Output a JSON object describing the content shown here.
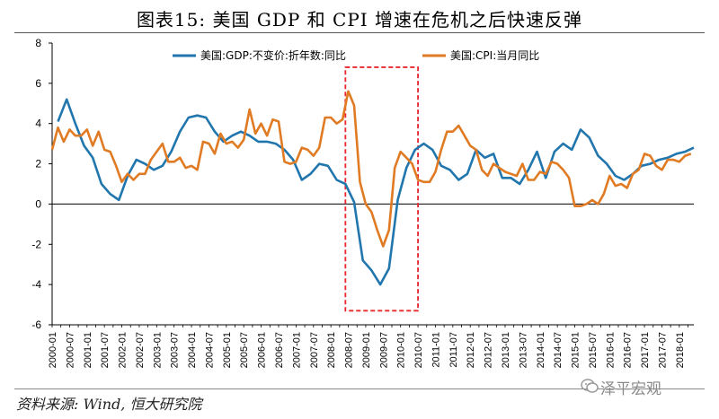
{
  "title": "图表15:    美国 GDP 和 CPI 增速在危机之后快速反弹",
  "source": "资料来源: Wind, 恒大研究院",
  "watermark": "泽平宏观",
  "chart_data": {
    "type": "line",
    "ylim": [
      -6,
      8
    ],
    "yticks": [
      -6,
      -4,
      -2,
      0,
      2,
      4,
      6,
      8
    ],
    "x_start": "2000-01",
    "x_end": "2018-06",
    "x_tick_labels": [
      "2000-01",
      "2000-07",
      "2001-01",
      "2001-07",
      "2002-01",
      "2002-07",
      "2003-01",
      "2003-07",
      "2004-01",
      "2004-07",
      "2005-01",
      "2005-07",
      "2006-01",
      "2006-07",
      "2007-01",
      "2007-07",
      "2008-01",
      "2008-07",
      "2009-01",
      "2009-07",
      "2010-01",
      "2010-07",
      "2011-01",
      "2011-07",
      "2012-01",
      "2012-07",
      "2013-01",
      "2013-07",
      "2014-01",
      "2014-07",
      "2015-01",
      "2015-07",
      "2016-01",
      "2016-07",
      "2017-01",
      "2017-07",
      "2018-01"
    ],
    "legend_position": "top",
    "highlight_box": {
      "x_from": "2008-06",
      "x_to": "2010-07",
      "y_from": -5.3,
      "y_to": 6.8,
      "color": "#e8262b"
    },
    "series": [
      {
        "name": "美国:GDP:不变价:折年数:同比",
        "color": "#2176ae",
        "points": [
          [
            "2000-03",
            4.1
          ],
          [
            "2000-06",
            5.2
          ],
          [
            "2000-09",
            4.0
          ],
          [
            "2000-12",
            2.9
          ],
          [
            "2001-03",
            2.3
          ],
          [
            "2001-06",
            1.0
          ],
          [
            "2001-09",
            0.5
          ],
          [
            "2001-12",
            0.2
          ],
          [
            "2002-03",
            1.4
          ],
          [
            "2002-06",
            2.2
          ],
          [
            "2002-09",
            2.0
          ],
          [
            "2002-12",
            1.7
          ],
          [
            "2003-03",
            1.9
          ],
          [
            "2003-06",
            2.6
          ],
          [
            "2003-09",
            3.6
          ],
          [
            "2003-12",
            4.3
          ],
          [
            "2004-03",
            4.4
          ],
          [
            "2004-06",
            4.3
          ],
          [
            "2004-09",
            3.6
          ],
          [
            "2004-12",
            3.1
          ],
          [
            "2005-03",
            3.4
          ],
          [
            "2005-06",
            3.6
          ],
          [
            "2005-09",
            3.4
          ],
          [
            "2005-12",
            3.1
          ],
          [
            "2006-03",
            3.1
          ],
          [
            "2006-06",
            3.0
          ],
          [
            "2006-09",
            2.7
          ],
          [
            "2006-12",
            2.2
          ],
          [
            "2007-03",
            1.2
          ],
          [
            "2007-06",
            1.5
          ],
          [
            "2007-09",
            2.0
          ],
          [
            "2007-12",
            1.9
          ],
          [
            "2008-03",
            1.2
          ],
          [
            "2008-06",
            1.0
          ],
          [
            "2008-09",
            0.1
          ],
          [
            "2008-12",
            -2.8
          ],
          [
            "2009-03",
            -3.3
          ],
          [
            "2009-06",
            -4.0
          ],
          [
            "2009-09",
            -3.2
          ],
          [
            "2009-12",
            0.2
          ],
          [
            "2010-03",
            1.8
          ],
          [
            "2010-06",
            2.7
          ],
          [
            "2010-09",
            3.0
          ],
          [
            "2010-12",
            2.7
          ],
          [
            "2011-03",
            1.9
          ],
          [
            "2011-06",
            1.7
          ],
          [
            "2011-09",
            1.2
          ],
          [
            "2011-12",
            1.5
          ],
          [
            "2012-03",
            2.7
          ],
          [
            "2012-06",
            2.3
          ],
          [
            "2012-09",
            2.5
          ],
          [
            "2012-12",
            1.3
          ],
          [
            "2013-03",
            1.3
          ],
          [
            "2013-06",
            1.0
          ],
          [
            "2013-09",
            1.7
          ],
          [
            "2013-12",
            2.6
          ],
          [
            "2014-03",
            1.3
          ],
          [
            "2014-06",
            2.6
          ],
          [
            "2014-09",
            3.0
          ],
          [
            "2014-12",
            2.7
          ],
          [
            "2015-03",
            3.7
          ],
          [
            "2015-06",
            3.3
          ],
          [
            "2015-09",
            2.4
          ],
          [
            "2015-12",
            2.0
          ],
          [
            "2016-03",
            1.4
          ],
          [
            "2016-06",
            1.2
          ],
          [
            "2016-09",
            1.5
          ],
          [
            "2016-12",
            1.9
          ],
          [
            "2017-03",
            2.0
          ],
          [
            "2017-06",
            2.2
          ],
          [
            "2017-09",
            2.3
          ],
          [
            "2017-12",
            2.5
          ],
          [
            "2018-03",
            2.6
          ],
          [
            "2018-06",
            2.8
          ]
        ]
      },
      {
        "name": "美国:CPI:当月同比",
        "color": "#e07b24",
        "points": [
          [
            "2000-01",
            2.7
          ],
          [
            "2000-03",
            3.8
          ],
          [
            "2000-05",
            3.1
          ],
          [
            "2000-07",
            3.7
          ],
          [
            "2000-09",
            3.4
          ],
          [
            "2000-11",
            3.4
          ],
          [
            "2001-01",
            3.7
          ],
          [
            "2001-03",
            2.9
          ],
          [
            "2001-05",
            3.6
          ],
          [
            "2001-07",
            2.7
          ],
          [
            "2001-09",
            2.6
          ],
          [
            "2001-11",
            1.9
          ],
          [
            "2002-01",
            1.1
          ],
          [
            "2002-03",
            1.5
          ],
          [
            "2002-05",
            1.2
          ],
          [
            "2002-07",
            1.5
          ],
          [
            "2002-09",
            1.5
          ],
          [
            "2002-11",
            2.2
          ],
          [
            "2003-01",
            2.6
          ],
          [
            "2003-03",
            3.0
          ],
          [
            "2003-05",
            2.1
          ],
          [
            "2003-07",
            2.1
          ],
          [
            "2003-09",
            2.3
          ],
          [
            "2003-11",
            1.8
          ],
          [
            "2004-01",
            1.9
          ],
          [
            "2004-03",
            1.7
          ],
          [
            "2004-05",
            3.1
          ],
          [
            "2004-07",
            3.0
          ],
          [
            "2004-09",
            2.5
          ],
          [
            "2004-11",
            3.5
          ],
          [
            "2005-01",
            3.0
          ],
          [
            "2005-03",
            3.1
          ],
          [
            "2005-05",
            2.8
          ],
          [
            "2005-07",
            3.2
          ],
          [
            "2005-09",
            4.7
          ],
          [
            "2005-11",
            3.5
          ],
          [
            "2006-01",
            4.0
          ],
          [
            "2006-03",
            3.4
          ],
          [
            "2006-05",
            4.2
          ],
          [
            "2006-07",
            4.1
          ],
          [
            "2006-09",
            2.1
          ],
          [
            "2006-11",
            2.0
          ],
          [
            "2007-01",
            2.1
          ],
          [
            "2007-03",
            2.8
          ],
          [
            "2007-05",
            2.7
          ],
          [
            "2007-07",
            2.4
          ],
          [
            "2007-09",
            2.8
          ],
          [
            "2007-11",
            4.3
          ],
          [
            "2008-01",
            4.3
          ],
          [
            "2008-03",
            4.0
          ],
          [
            "2008-05",
            4.2
          ],
          [
            "2008-07",
            5.6
          ],
          [
            "2008-09",
            4.9
          ],
          [
            "2008-11",
            1.1
          ],
          [
            "2009-01",
            0.0
          ],
          [
            "2009-03",
            -0.4
          ],
          [
            "2009-05",
            -1.3
          ],
          [
            "2009-07",
            -2.1
          ],
          [
            "2009-09",
            -1.3
          ],
          [
            "2009-11",
            1.8
          ],
          [
            "2010-01",
            2.6
          ],
          [
            "2010-03",
            2.3
          ],
          [
            "2010-05",
            2.0
          ],
          [
            "2010-07",
            1.2
          ],
          [
            "2010-09",
            1.1
          ],
          [
            "2010-11",
            1.1
          ],
          [
            "2011-01",
            1.6
          ],
          [
            "2011-03",
            2.7
          ],
          [
            "2011-05",
            3.6
          ],
          [
            "2011-07",
            3.6
          ],
          [
            "2011-09",
            3.9
          ],
          [
            "2011-11",
            3.4
          ],
          [
            "2012-01",
            2.9
          ],
          [
            "2012-03",
            2.7
          ],
          [
            "2012-05",
            1.7
          ],
          [
            "2012-07",
            1.4
          ],
          [
            "2012-09",
            2.0
          ],
          [
            "2012-11",
            1.8
          ],
          [
            "2013-01",
            1.6
          ],
          [
            "2013-03",
            1.5
          ],
          [
            "2013-05",
            1.4
          ],
          [
            "2013-07",
            2.0
          ],
          [
            "2013-09",
            1.2
          ],
          [
            "2013-11",
            1.2
          ],
          [
            "2014-01",
            1.6
          ],
          [
            "2014-03",
            1.5
          ],
          [
            "2014-05",
            2.1
          ],
          [
            "2014-07",
            2.0
          ],
          [
            "2014-09",
            1.7
          ],
          [
            "2014-11",
            1.3
          ],
          [
            "2015-01",
            -0.1
          ],
          [
            "2015-03",
            -0.1
          ],
          [
            "2015-05",
            0.0
          ],
          [
            "2015-07",
            0.2
          ],
          [
            "2015-09",
            0.0
          ],
          [
            "2015-11",
            0.5
          ],
          [
            "2016-01",
            1.4
          ],
          [
            "2016-03",
            0.9
          ],
          [
            "2016-05",
            1.0
          ],
          [
            "2016-07",
            0.8
          ],
          [
            "2016-09",
            1.5
          ],
          [
            "2016-11",
            1.7
          ],
          [
            "2017-01",
            2.5
          ],
          [
            "2017-03",
            2.4
          ],
          [
            "2017-05",
            1.9
          ],
          [
            "2017-07",
            1.7
          ],
          [
            "2017-09",
            2.2
          ],
          [
            "2017-11",
            2.2
          ],
          [
            "2018-01",
            2.1
          ],
          [
            "2018-03",
            2.4
          ],
          [
            "2018-05",
            2.5
          ]
        ]
      }
    ]
  }
}
